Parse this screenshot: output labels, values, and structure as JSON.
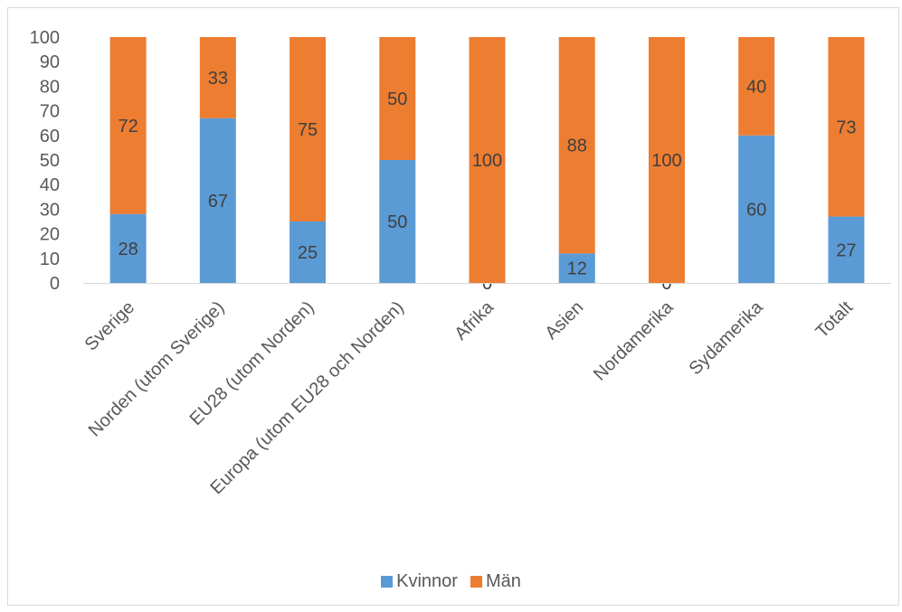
{
  "chart_data": {
    "type": "bar",
    "stacked": true,
    "categories": [
      "Sverige",
      "Norden (utom Sverige)",
      "EU28 (utom Norden)",
      "Europa (utom EU28 och Norden)",
      "Afrika",
      "Asien",
      "Nordamerika",
      "Sydamerika",
      "Totalt"
    ],
    "series": [
      {
        "name": "Kvinnor",
        "color": "#5b9bd5",
        "values": [
          28,
          67,
          25,
          50,
          0,
          12,
          0,
          60,
          27
        ]
      },
      {
        "name": "Män",
        "color": "#ed7d31",
        "values": [
          72,
          33,
          75,
          50,
          100,
          88,
          100,
          40,
          73
        ]
      }
    ],
    "ylim": [
      0,
      100
    ],
    "yticks": [
      0,
      10,
      20,
      30,
      40,
      50,
      60,
      70,
      80,
      90,
      100
    ],
    "title": "",
    "xlabel": "",
    "ylabel": "",
    "grid": false,
    "legend_position": "bottom",
    "data_labels": true
  }
}
